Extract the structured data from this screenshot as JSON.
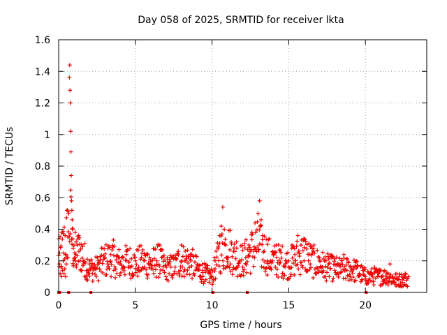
{
  "chart_data": {
    "type": "scatter",
    "title": "Day 058 of 2025, SRMTID for receiver lkta",
    "xlabel": "GPS time / hours",
    "ylabel": "SRMTID / TECUs",
    "xlim": [
      0,
      24
    ],
    "ylim": [
      0,
      1.6
    ],
    "x_ticks": [
      0,
      5,
      10,
      15,
      20
    ],
    "x_tick_labels": [
      "0",
      "5",
      "10",
      "15",
      "20"
    ],
    "y_ticks": [
      0,
      0.2,
      0.4,
      0.6,
      0.8,
      1.0,
      1.2,
      1.4,
      1.6
    ],
    "y_tick_labels": [
      "0",
      "0.2",
      "0.4",
      "0.6",
      "0.8",
      "1",
      "1.2",
      "1.4",
      "1.6"
    ],
    "grid": true,
    "marker": "plus",
    "color": "#ee0000",
    "series": [
      {
        "name": "SRMTID",
        "x": [
          0.0,
          0.05,
          0.1,
          0.15,
          0.2,
          0.25,
          0.3,
          0.35,
          0.4,
          0.45,
          0.5,
          0.55,
          0.6,
          0.65,
          0.7,
          0.72,
          0.74,
          0.76,
          0.78,
          0.8,
          0.82,
          0.84,
          0.86,
          0.88,
          0.9,
          0.92,
          0.95,
          1.0,
          1.05,
          1.1,
          1.15,
          1.2,
          1.3,
          1.4,
          1.5,
          1.6,
          1.7,
          1.8,
          1.9,
          2.0,
          2.2,
          2.4,
          2.6,
          2.8,
          3.0,
          3.2,
          3.4,
          3.6,
          3.8,
          4.0,
          4.2,
          4.4,
          4.6,
          4.8,
          5.0,
          5.2,
          5.4,
          5.6,
          5.8,
          6.0,
          6.2,
          6.4,
          6.6,
          6.8,
          7.0,
          7.2,
          7.4,
          7.6,
          7.8,
          8.0,
          8.2,
          8.4,
          8.6,
          8.8,
          9.0,
          9.2,
          9.4,
          9.6,
          9.8,
          10.0,
          10.2,
          10.4,
          10.5,
          10.6,
          10.7,
          10.8,
          10.9,
          11.0,
          11.2,
          11.4,
          11.6,
          11.8,
          12.0,
          12.2,
          12.4,
          12.6,
          12.8,
          13.0,
          13.1,
          13.2,
          13.3,
          13.4,
          13.6,
          13.8,
          14.0,
          14.2,
          14.4,
          14.6,
          14.8,
          15.0,
          15.2,
          15.4,
          15.6,
          15.8,
          16.0,
          16.2,
          16.4,
          16.6,
          16.8,
          17.0,
          17.2,
          17.4,
          17.6,
          17.8,
          18.0,
          18.2,
          18.4,
          18.6,
          18.8,
          19.0,
          19.2,
          19.4,
          19.6,
          19.8,
          20.0,
          20.2,
          20.4,
          20.6,
          20.8,
          21.0,
          21.2,
          21.4,
          21.6,
          21.8,
          22.0,
          22.2,
          22.4,
          22.6,
          22.8
        ],
        "y": [
          0.34,
          0.18,
          0.12,
          0.16,
          0.1,
          0.14,
          0.2,
          0.12,
          0.15,
          0.1,
          0.18,
          0.22,
          0.35,
          0.5,
          1.36,
          1.44,
          1.28,
          1.2,
          1.02,
          0.89,
          0.74,
          0.58,
          0.52,
          0.46,
          0.4,
          0.34,
          0.28,
          0.3,
          0.22,
          0.2,
          0.16,
          0.3,
          0.36,
          0.2,
          0.14,
          0.18,
          0.1,
          0.08,
          0.14,
          0.18,
          0.12,
          0.16,
          0.2,
          0.28,
          0.22,
          0.18,
          0.24,
          0.14,
          0.12,
          0.18,
          0.22,
          0.26,
          0.16,
          0.12,
          0.2,
          0.14,
          0.22,
          0.16,
          0.24,
          0.18,
          0.12,
          0.2,
          0.3,
          0.14,
          0.1,
          0.18,
          0.22,
          0.16,
          0.26,
          0.3,
          0.2,
          0.14,
          0.24,
          0.12,
          0.16,
          0.1,
          0.14,
          0.08,
          0.12,
          0.1,
          0.2,
          0.28,
          0.36,
          0.42,
          0.54,
          0.4,
          0.3,
          0.22,
          0.18,
          0.26,
          0.32,
          0.2,
          0.16,
          0.22,
          0.3,
          0.38,
          0.44,
          0.5,
          0.58,
          0.46,
          0.36,
          0.26,
          0.2,
          0.16,
          0.24,
          0.3,
          0.18,
          0.12,
          0.2,
          0.16,
          0.28,
          0.24,
          0.36,
          0.3,
          0.2,
          0.14,
          0.18,
          0.26,
          0.12,
          0.22,
          0.16,
          0.1,
          0.18,
          0.22,
          0.14,
          0.12,
          0.18,
          0.24,
          0.14,
          0.1,
          0.16,
          0.2,
          0.12,
          0.08,
          0.1,
          0.06,
          0.12,
          0.16,
          0.1,
          0.14,
          0.08,
          0.12,
          0.18,
          0.06,
          0.04,
          0.1,
          0.08,
          0.12,
          0.1
        ]
      }
    ],
    "cluster_x": [
      0.0,
      0.8,
      0.85,
      0.9,
      1.0,
      1.5,
      2.0,
      2.5,
      3.0,
      3.5,
      4.0,
      4.5,
      5.0,
      5.5,
      6.0,
      6.5,
      7.0,
      7.5,
      8.0,
      8.5,
      9.0,
      9.5,
      10.0,
      10.5,
      11.0,
      11.5,
      12.0,
      12.5,
      13.0,
      13.5,
      14.0,
      14.5,
      15.0,
      15.5,
      16.0,
      16.5,
      17.0,
      17.5,
      18.0,
      18.5,
      19.0,
      19.5,
      20.0,
      20.5,
      21.0,
      21.5,
      22.0,
      22.5,
      22.8
    ],
    "cluster_y": [
      0.2,
      0.45,
      0.35,
      0.3,
      0.25,
      0.25,
      0.15,
      0.15,
      0.2,
      0.22,
      0.18,
      0.2,
      0.18,
      0.2,
      0.18,
      0.2,
      0.15,
      0.16,
      0.2,
      0.2,
      0.15,
      0.12,
      0.1,
      0.25,
      0.3,
      0.22,
      0.2,
      0.25,
      0.3,
      0.25,
      0.2,
      0.2,
      0.18,
      0.22,
      0.25,
      0.2,
      0.18,
      0.16,
      0.15,
      0.14,
      0.15,
      0.13,
      0.1,
      0.1,
      0.1,
      0.1,
      0.08,
      0.08,
      0.08
    ],
    "zero_x": [
      0.0,
      0.05,
      0.65,
      2.1,
      10.05,
      12.3,
      20.05
    ]
  }
}
